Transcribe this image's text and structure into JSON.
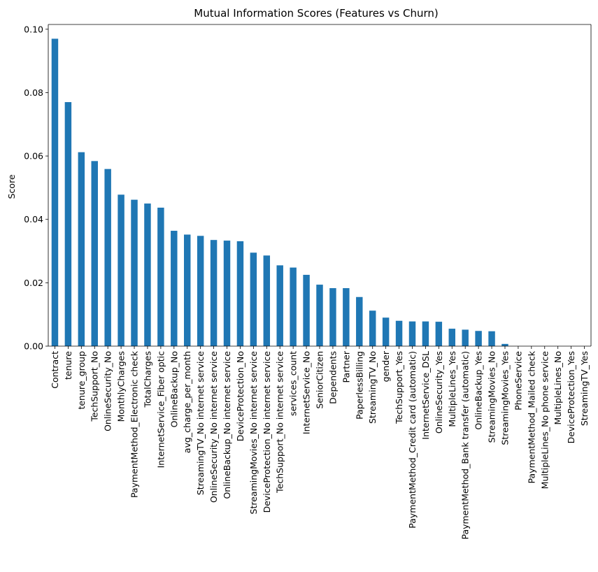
{
  "chart_data": {
    "type": "bar",
    "title": "Mutual Information Scores (Features vs Churn)",
    "xlabel": "",
    "ylabel": "Score",
    "ylim": [
      0,
      0.1015
    ],
    "yticks": [
      0.0,
      0.02,
      0.04,
      0.06,
      0.08,
      0.1
    ],
    "ytick_labels": [
      "0.00",
      "0.02",
      "0.04",
      "0.06",
      "0.08",
      "0.10"
    ],
    "grid": false,
    "legend": "none",
    "bar_color": "#1f77b4",
    "categories": [
      "Contract",
      "tenure",
      "tenure_group",
      "TechSupport_No",
      "OnlineSecurity_No",
      "MonthlyCharges",
      "PaymentMethod_Electronic check",
      "TotalCharges",
      "InternetService_Fiber optic",
      "OnlineBackup_No",
      "avg_charge_per_month",
      "StreamingTV_No internet service",
      "OnlineSecurity_No internet service",
      "OnlineBackup_No internet service",
      "DeviceProtection_No",
      "StreamingMovies_No internet service",
      "DeviceProtection_No internet service",
      "TechSupport_No internet service",
      "services_count",
      "InternetService_No",
      "SeniorCitizen",
      "Dependents",
      "Partner",
      "PaperlessBilling",
      "StreamingTV_No",
      "gender",
      "TechSupport_Yes",
      "PaymentMethod_Credit card (automatic)",
      "InternetService_DSL",
      "OnlineSecurity_Yes",
      "MultipleLines_Yes",
      "PaymentMethod_Bank transfer (automatic)",
      "OnlineBackup_Yes",
      "StreamingMovies_No",
      "StreamingMovies_Yes",
      "PhoneService",
      "PaymentMethod_Mailed check",
      "MultipleLines_No phone service",
      "MultipleLines_No",
      "DeviceProtection_Yes",
      "StreamingTV_Yes"
    ],
    "values": [
      0.097,
      0.077,
      0.0612,
      0.0584,
      0.0559,
      0.0478,
      0.0462,
      0.045,
      0.0437,
      0.0364,
      0.0352,
      0.0348,
      0.0335,
      0.0333,
      0.0331,
      0.0295,
      0.0286,
      0.0255,
      0.0248,
      0.0225,
      0.0194,
      0.0183,
      0.0183,
      0.0155,
      0.0112,
      0.009,
      0.008,
      0.0078,
      0.0078,
      0.0077,
      0.0055,
      0.0052,
      0.0048,
      0.0047,
      0.0007,
      0.0,
      0.0,
      0.0,
      0.0,
      0.0,
      0.0
    ]
  }
}
